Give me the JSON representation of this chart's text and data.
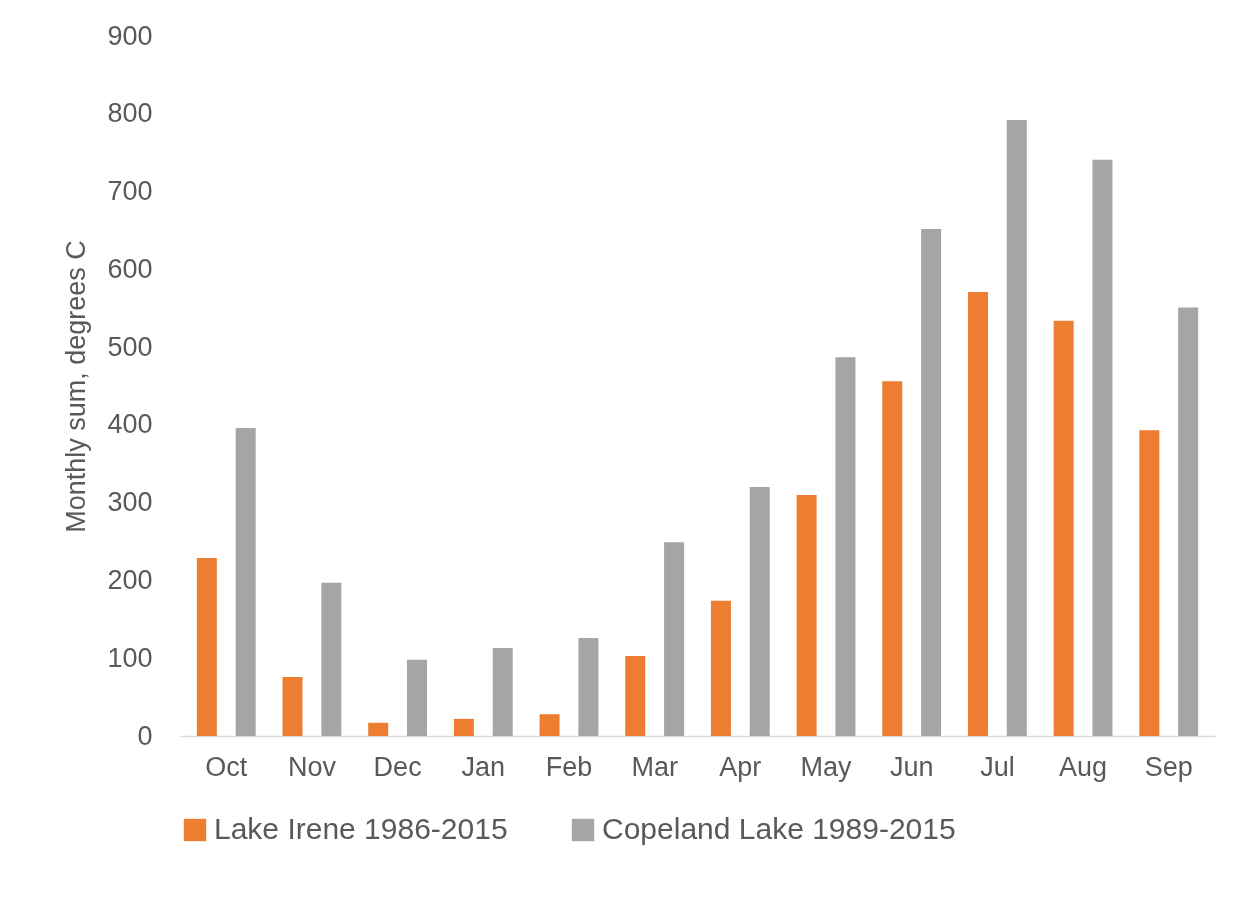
{
  "chart_data": {
    "type": "bar",
    "ylabel": "Monthly sum, degrees C",
    "categories": [
      "Oct",
      "Nov",
      "Dec",
      "Jan",
      "Feb",
      "Mar",
      "Apr",
      "May",
      "Jun",
      "Jul",
      "Aug",
      "Sep"
    ],
    "series": [
      {
        "name": "Lake Irene 1986-2015",
        "color": "#ed7d31",
        "values": [
          229,
          76,
          17,
          22,
          28,
          103,
          174,
          310,
          456,
          571,
          534,
          393
        ]
      },
      {
        "name": "Copeland Lake 1989-2015",
        "color": "#a5a5a5",
        "values": [
          396,
          197,
          98,
          113,
          126,
          249,
          320,
          487,
          652,
          792,
          741,
          551
        ]
      }
    ],
    "ylim": [
      0,
      900
    ],
    "yticks": [
      0,
      100,
      200,
      300,
      400,
      500,
      600,
      700,
      800,
      900
    ],
    "grid": false,
    "legend": "bottom"
  }
}
